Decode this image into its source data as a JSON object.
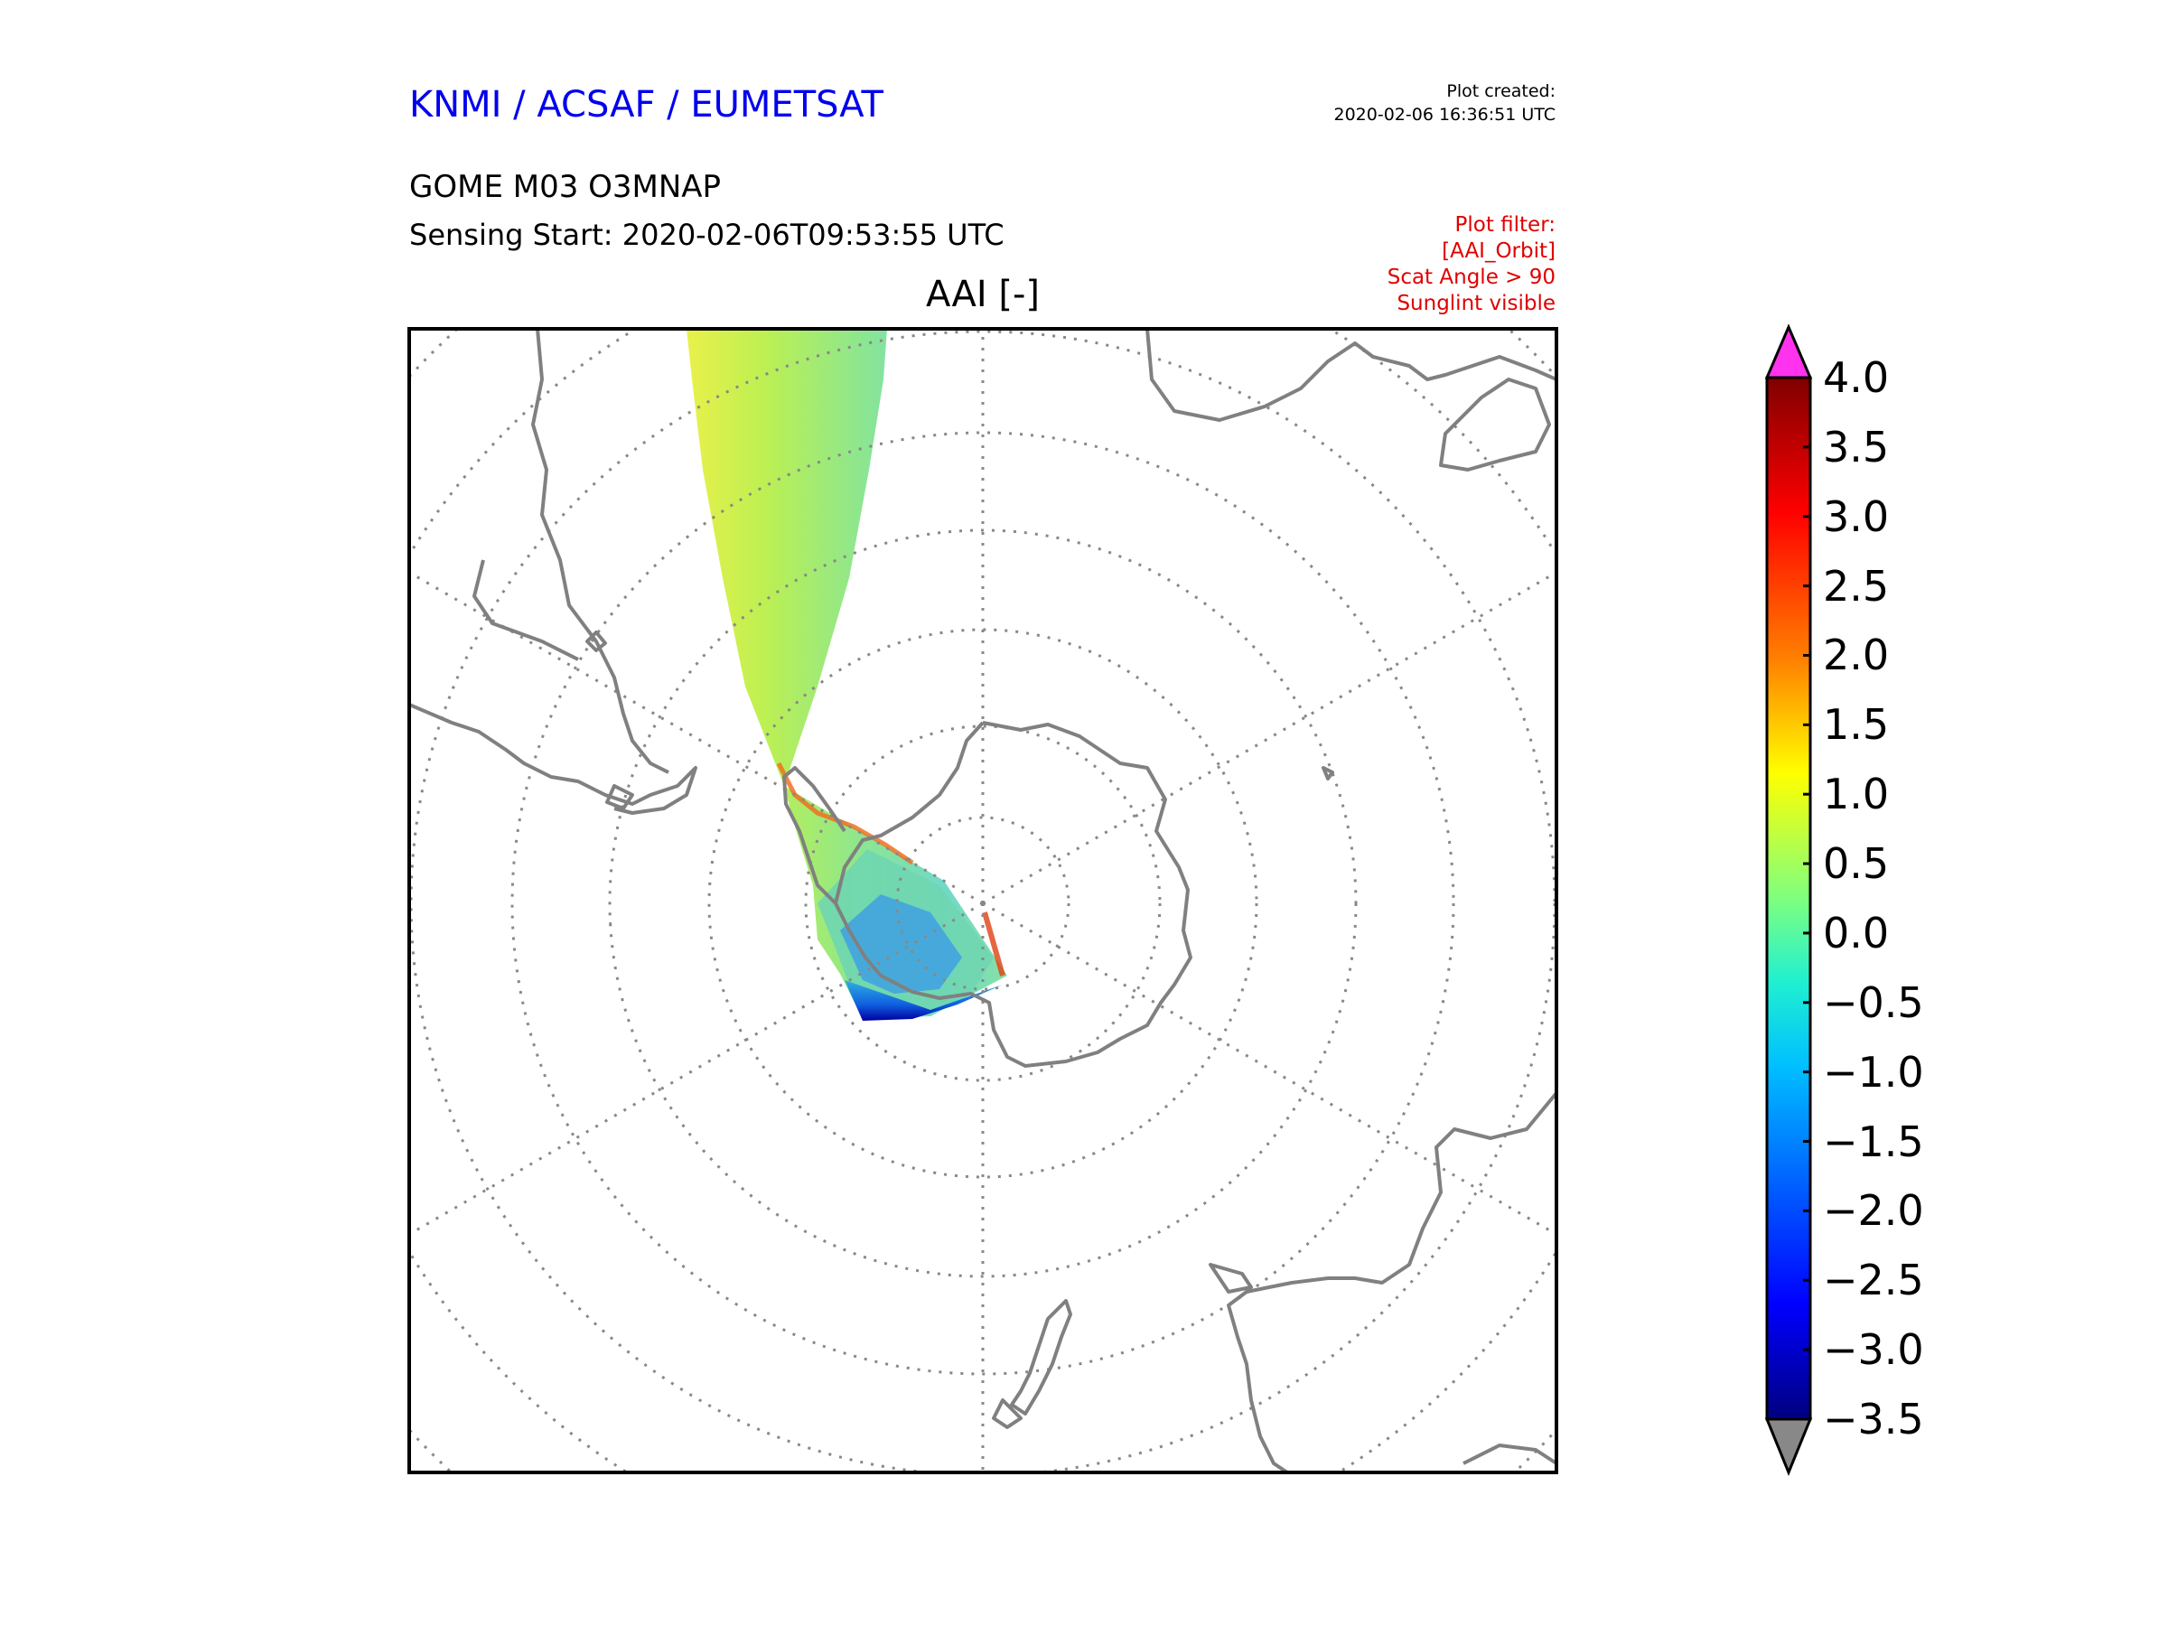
{
  "header": {
    "agency": "KNMI / ACSAF / EUMETSAT",
    "created_label": "Plot created:",
    "created_time": "2020-02-06 16:36:51 UTC",
    "product": "GOME M03 O3MNAP",
    "sensing_start": "Sensing Start: 2020-02-06T09:53:55 UTC",
    "filter_lines": [
      "Plot filter:",
      "[AAI_Orbit]",
      "Scat Angle > 90",
      "Sunglint visible"
    ]
  },
  "map": {
    "title": "AAI [-]",
    "projection": "south polar stereographic",
    "graticule": "dotted",
    "coastline_color": "#808080",
    "frame_color": "#000000"
  },
  "colorbar": {
    "ticks": [
      "4.0",
      "3.5",
      "3.0",
      "2.5",
      "2.0",
      "1.5",
      "1.0",
      "0.5",
      "0.0",
      "−0.5",
      "−1.0",
      "−1.5",
      "−2.0",
      "−2.5",
      "−3.0",
      "−3.5"
    ],
    "min": -3.5,
    "max": 4.0,
    "over_color": "#ff33ee",
    "under_color": "#888888",
    "colormap": [
      "#00007f",
      "#0000ff",
      "#007fff",
      "#00ffff",
      "#7fff7f",
      "#ffff00",
      "#ff7f00",
      "#ff0000",
      "#7f0000"
    ]
  }
}
